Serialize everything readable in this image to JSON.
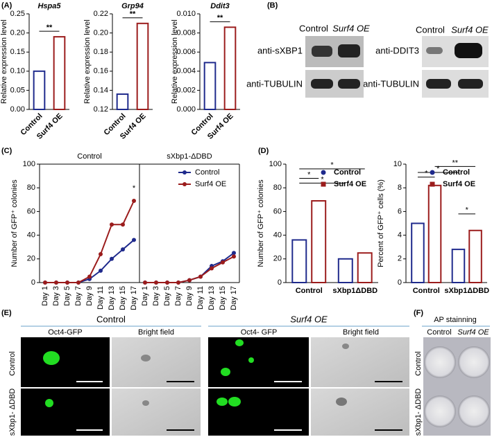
{
  "panel_letters": [
    "(A)",
    "(B)",
    "(C)",
    "(D)",
    "(E)",
    "(F)"
  ],
  "blots": {
    "left": {
      "columns": [
        "Control",
        "Surf4 OE"
      ],
      "rows": [
        "anti-sXBP1",
        "anti-TUBULIN"
      ]
    },
    "right": {
      "columns": [
        "Control",
        "Surf4 OE"
      ],
      "rows": [
        "anti-DDIT3",
        "anti-TUBULIN"
      ]
    }
  },
  "microscopy": {
    "groups": [
      "Control",
      "Surf4 OE"
    ],
    "columns": [
      "Oct4-GFP",
      "Bright field",
      "Oct4- GFP",
      "Bright field"
    ],
    "rows": [
      "Control",
      "sXbp1- ΔDBD"
    ]
  },
  "ap_staining": {
    "title": "AP stainning",
    "columns": [
      "Control",
      "Surf4 OE"
    ],
    "rows": [
      "Control",
      "sXbp1- ΔDBD"
    ]
  },
  "chart_data": [
    {
      "type": "bar",
      "title": "Hspa5",
      "y_label": "Relative expression level",
      "categories": [
        "Control",
        "Surf4 OE"
      ],
      "values": [
        0.1,
        0.19
      ],
      "colors": [
        "#1f2a8c",
        "#9b1c1c"
      ],
      "ylim": [
        0,
        0.25
      ],
      "yticks": [
        {
          "value": 0,
          "label": "0.00"
        },
        0.05,
        {
          "value": 0.1,
          "label": "0.10"
        },
        0.15,
        {
          "value": 0.2,
          "label": "0.20"
        },
        0.25
      ],
      "annotations": [
        "**"
      ]
    },
    {
      "type": "bar",
      "title": "Grp94",
      "y_label": "Relative expression level",
      "categories": [
        "Control",
        "Surf4 OE"
      ],
      "values": [
        0.136,
        0.21
      ],
      "colors": [
        "#1f2a8c",
        "#9b1c1c"
      ],
      "ylim": [
        0.12,
        0.22
      ],
      "yticks": [
        0.12,
        0.14,
        0.16,
        0.18,
        {
          "value": 0.2,
          "label": "0.20"
        },
        0.22
      ],
      "annotations": [
        "**"
      ]
    },
    {
      "type": "bar",
      "title": "Ddit3",
      "y_label": "Relative expression level",
      "categories": [
        "Control",
        "Surf4 OE"
      ],
      "values": [
        0.0049,
        0.0086
      ],
      "colors": [
        "#1f2a8c",
        "#9b1c1c"
      ],
      "ylim": [
        0,
        0.01
      ],
      "yticks": [
        {
          "value": 0,
          "label": "0.000"
        },
        0.002,
        0.004,
        0.006,
        0.008,
        {
          "value": 0.01,
          "label": "0.010"
        }
      ],
      "annotations": [
        "**"
      ]
    },
    {
      "type": "line",
      "title": "Control",
      "y_label": "Number of GFP⁺ colonies",
      "categories": [
        "Day 1",
        "Day 3",
        "Day 5",
        "Day 7",
        "Day 9",
        "Day 11",
        "Day 13",
        "Day 15",
        "Day 17"
      ],
      "series": [
        {
          "name": "Control",
          "color": "#1f2a8c",
          "values": [
            0,
            0,
            0,
            0,
            3,
            10,
            20,
            28,
            36
          ]
        },
        {
          "name": "Surf4 OE",
          "color": "#9b1c1c",
          "values": [
            0,
            0,
            0,
            0,
            5,
            24,
            49,
            49,
            69
          ]
        }
      ],
      "ylim": [
        0,
        100
      ],
      "yticks": [
        0,
        20,
        40,
        60,
        80,
        100
      ],
      "annotations": [
        "*"
      ]
    },
    {
      "type": "line",
      "title": "sXbp1-ΔDBD",
      "categories": [
        "Day 1",
        "Day 3",
        "Day 5",
        "Day 7",
        "Day 9",
        "Day 11",
        "Day 13",
        "Day 15",
        "Day 17"
      ],
      "series": [
        {
          "name": "Control",
          "color": "#1f2a8c",
          "values": [
            0,
            0,
            0,
            0,
            2,
            5,
            14,
            18,
            25
          ]
        },
        {
          "name": "Surf4 OE",
          "color": "#9b1c1c",
          "values": [
            0,
            0,
            0,
            0,
            2,
            5,
            12,
            17,
            22
          ]
        }
      ],
      "ylim": [
        0,
        100
      ],
      "legend": "upper right"
    },
    {
      "type": "grouped_bar",
      "y_label": "Number of GFP⁺ colonies",
      "categories": [
        "Control",
        "sXbp1ΔDBD"
      ],
      "series": [
        {
          "name": "Control",
          "color": "#1f2a8c",
          "values": [
            36,
            20
          ]
        },
        {
          "name": "Surf4 OE",
          "color": "#9b1c1c",
          "values": [
            69,
            25
          ]
        }
      ],
      "ylim": [
        0,
        100
      ],
      "yticks": [
        0,
        20,
        40,
        60,
        80,
        100
      ],
      "legend": "upper right",
      "annotations": [
        "*",
        "*",
        "*"
      ]
    },
    {
      "type": "grouped_bar",
      "y_label": "Percent of GFP⁺ cells (%)",
      "categories": [
        "Control",
        "sXbp1ΔDBD"
      ],
      "series": [
        {
          "name": "Control",
          "color": "#1f2a8c",
          "values": [
            5.0,
            2.8
          ]
        },
        {
          "name": "Surf4 OE",
          "color": "#9b1c1c",
          "values": [
            8.2,
            4.4
          ]
        }
      ],
      "ylim": [
        0,
        10
      ],
      "yticks": [
        0,
        2,
        4,
        6,
        8,
        10
      ],
      "legend": "upper right",
      "annotations": [
        "*",
        "*",
        "**",
        "*"
      ]
    }
  ]
}
